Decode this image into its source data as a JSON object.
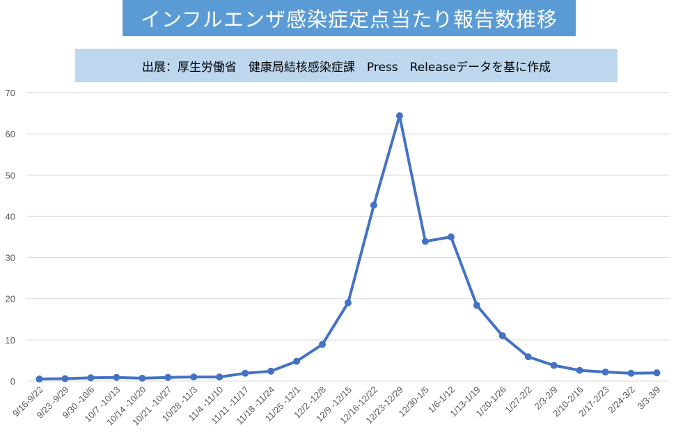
{
  "title": "インフルエンザ感染症定点当たり報告数推移",
  "subtitle": "出展：厚生労働省　健康局結核感染症課　Press　Releaseデータを基に作成",
  "colors": {
    "title_bg": "#5b9bd5",
    "subtitle_bg": "#bdd7ee",
    "series": "#4472c4",
    "grid": "#d9d9d9",
    "axis_text": "#595959"
  },
  "chart_data": {
    "type": "line",
    "ylim": [
      0,
      70
    ],
    "yticks": [
      0,
      10,
      20,
      30,
      40,
      50,
      60,
      70
    ],
    "grid": true,
    "categories": [
      "9/16-9/22",
      "9/23 -9/29",
      "9/30 -10/6",
      "10/7 -10/13",
      "10/14 -10/20",
      "10/21 -10/27",
      "10/28 -11/3",
      "11/4 -11/10",
      "11/11 -11/17",
      "11/18 -11/24",
      "11/25 -12/1",
      "12/2 -12/8",
      "12/9 -12/15",
      "12/16-12/22",
      "12/23-12/29",
      "12/30-1/5",
      "1/6-1/12",
      "1/13-1/19",
      "1/20-1/26",
      "1/27-2/2",
      "2/3-2/9",
      "2/10-2/16",
      "2/17-2/23",
      "2/24-3/2",
      "3/3-3/9"
    ],
    "series": [
      {
        "values": [
          0.5,
          0.6,
          0.8,
          0.9,
          0.7,
          0.9,
          1.0,
          1.0,
          1.9,
          2.4,
          4.8,
          8.9,
          19.0,
          42.7,
          64.4,
          33.9,
          35.0,
          18.4,
          11.0,
          5.9,
          3.8,
          2.6,
          2.2,
          1.9,
          2.0
        ]
      }
    ]
  }
}
